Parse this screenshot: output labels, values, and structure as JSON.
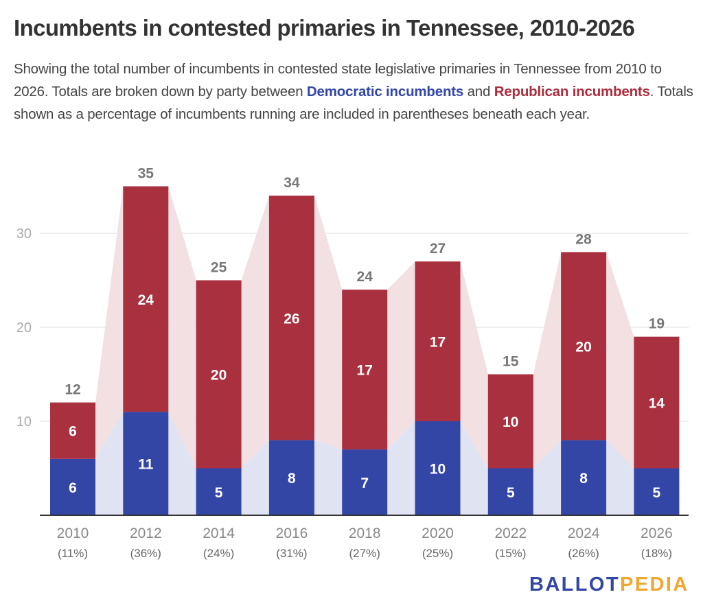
{
  "header": {
    "title": "Incumbents in contested primaries in Tennessee, 2010-2026",
    "subtitle_part1": "Showing the total number of incumbents in contested state legislative primaries in Tennessee from 2010 to 2026. Totals are broken down by party between ",
    "subtitle_dem": "Democratic incumbents",
    "subtitle_part2": " and ",
    "subtitle_rep": "Republican incumbents",
    "subtitle_part3": ". Totals shown as a percentage of incumbents running are included in parentheses beneath each year."
  },
  "logo": {
    "part1": "BALLOT",
    "part2": "PEDIA"
  },
  "colors": {
    "democratic": "#3346a6",
    "republican": "#a9303f",
    "democratic_area": "#e0e3f2",
    "republican_area": "#f2e0e3",
    "grid": "#e3e3e3",
    "axis": "#333333",
    "tick_label": "#aaaaaa",
    "category_label": "#888888",
    "total_label": "#777777"
  },
  "chart_data": {
    "type": "bar",
    "stacked": true,
    "title": "Incumbents in contested primaries in Tennessee, 2010-2026",
    "xlabel": "",
    "ylabel": "",
    "ylim": [
      0,
      37
    ],
    "yticks": [
      10,
      20,
      30
    ],
    "grid": true,
    "legend": "inline in subtitle",
    "categories": [
      "2010",
      "2012",
      "2014",
      "2016",
      "2018",
      "2020",
      "2022",
      "2024",
      "2026"
    ],
    "category_sublabels": [
      "(11%)",
      "(36%)",
      "(24%)",
      "(31%)",
      "(27%)",
      "(25%)",
      "(15%)",
      "(26%)",
      "(18%)"
    ],
    "series": [
      {
        "name": "Democratic incumbents",
        "values": [
          6,
          11,
          5,
          8,
          7,
          10,
          5,
          8,
          5
        ]
      },
      {
        "name": "Republican incumbents",
        "values": [
          6,
          24,
          20,
          26,
          17,
          17,
          10,
          20,
          14
        ]
      }
    ],
    "totals": [
      12,
      35,
      25,
      34,
      24,
      27,
      15,
      28,
      19
    ]
  }
}
